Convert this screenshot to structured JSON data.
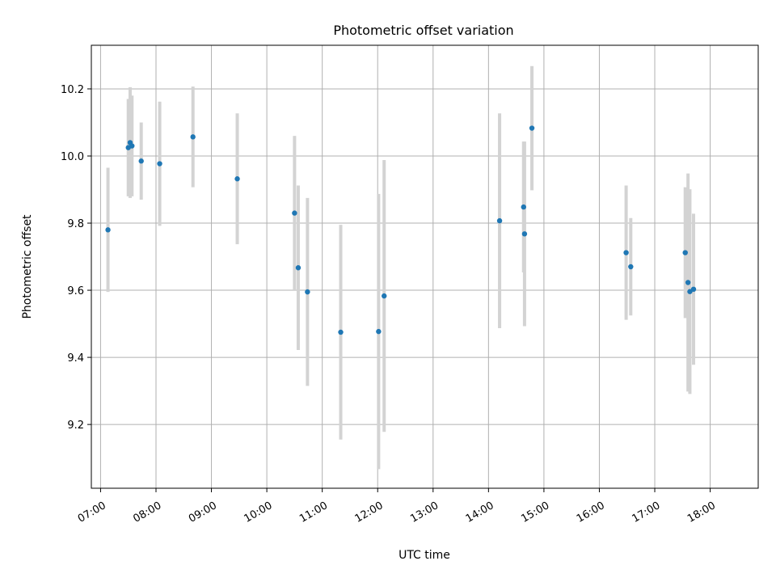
{
  "chart_data": {
    "type": "scatter",
    "title": "Photometric offset variation",
    "xlabel": "UTC time",
    "ylabel": "Photometric offset",
    "grid": true,
    "xlim": [
      "06:50",
      "18:52"
    ],
    "ylim": [
      9.01,
      10.33
    ],
    "x_ticks": [
      "07:00",
      "08:00",
      "09:00",
      "10:00",
      "11:00",
      "12:00",
      "13:00",
      "14:00",
      "15:00",
      "16:00",
      "17:00",
      "18:00"
    ],
    "y_ticks": [
      "9.2",
      "9.4",
      "9.6",
      "9.8",
      "10.0",
      "10.2"
    ],
    "colors": {
      "point": "#1f77b4",
      "errorbar": "#d3d3d3",
      "grid": "#b0b0b0"
    },
    "points": [
      {
        "x": "07:08",
        "y": 9.78,
        "err": 0.185
      },
      {
        "x": "07:30",
        "y": 10.025,
        "err": 0.145
      },
      {
        "x": "07:32",
        "y": 10.04,
        "err": 0.165
      },
      {
        "x": "07:34",
        "y": 10.03,
        "err": 0.15
      },
      {
        "x": "07:44",
        "y": 9.985,
        "err": 0.115
      },
      {
        "x": "08:04",
        "y": 9.977,
        "err": 0.185
      },
      {
        "x": "08:40",
        "y": 10.057,
        "err": 0.15
      },
      {
        "x": "09:28",
        "y": 9.932,
        "err": 0.195
      },
      {
        "x": "10:30",
        "y": 9.83,
        "err": 0.23
      },
      {
        "x": "10:34",
        "y": 9.667,
        "err": 0.245
      },
      {
        "x": "10:44",
        "y": 9.595,
        "err": 0.28
      },
      {
        "x": "11:20",
        "y": 9.475,
        "err": 0.32
      },
      {
        "x": "12:01",
        "y": 9.477,
        "err": 0.41
      },
      {
        "x": "12:07",
        "y": 9.583,
        "err": 0.405
      },
      {
        "x": "14:12",
        "y": 9.807,
        "err": 0.32
      },
      {
        "x": "14:38",
        "y": 9.848,
        "err": 0.195
      },
      {
        "x": "14:39",
        "y": 9.768,
        "err": 0.275
      },
      {
        "x": "14:47",
        "y": 10.083,
        "err": 0.185
      },
      {
        "x": "16:29",
        "y": 9.712,
        "err": 0.2
      },
      {
        "x": "16:34",
        "y": 9.67,
        "err": 0.145
      },
      {
        "x": "17:33",
        "y": 9.712,
        "err": 0.195
      },
      {
        "x": "17:36",
        "y": 9.623,
        "err": 0.325
      },
      {
        "x": "17:38",
        "y": 9.596,
        "err": 0.305
      },
      {
        "x": "17:42",
        "y": 9.603,
        "err": 0.225
      }
    ]
  }
}
